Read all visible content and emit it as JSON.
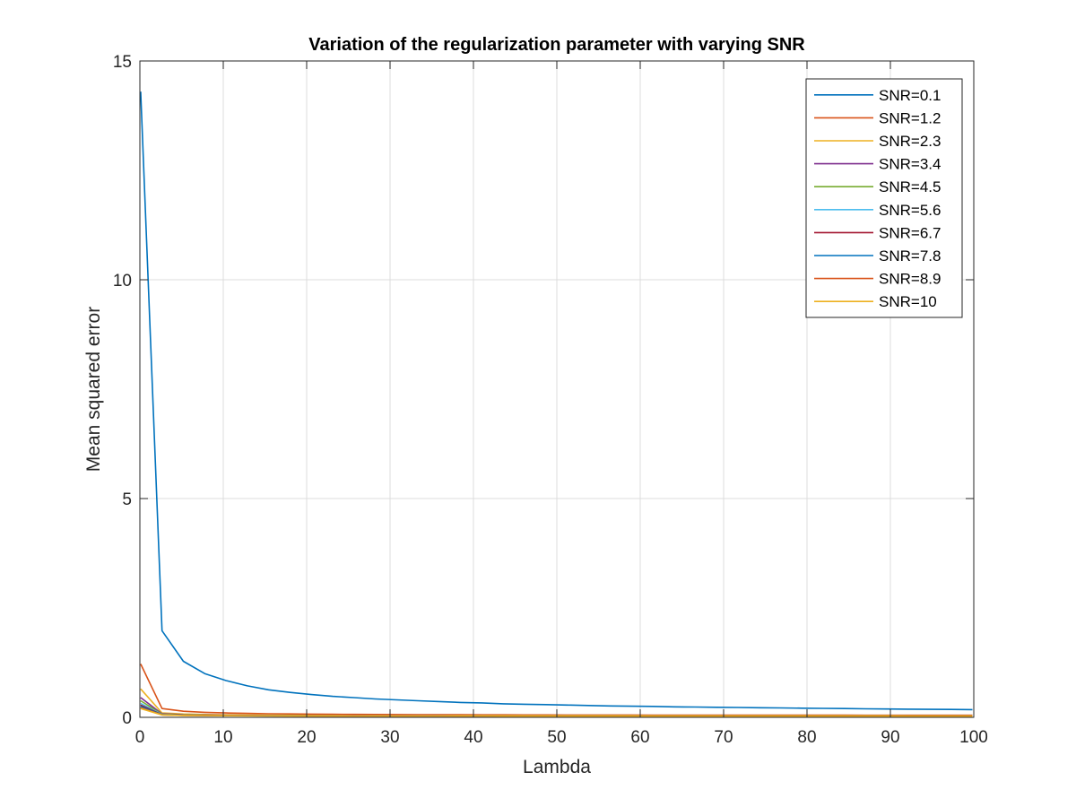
{
  "chart_data": {
    "type": "line",
    "title": "Variation of the regularization parameter with varying SNR",
    "xlabel": "Lambda",
    "ylabel": "Mean squared error",
    "xlim": [
      0,
      100
    ],
    "ylim": [
      0,
      15
    ],
    "xticks": [
      "0",
      "10",
      "20",
      "30",
      "40",
      "50",
      "60",
      "70",
      "80",
      "90",
      "100"
    ],
    "yticks": [
      "0",
      "5",
      "10",
      "15"
    ],
    "grid": true,
    "legend_position": "top-right",
    "x": [
      0.1,
      2.66,
      5.21,
      7.77,
      10.33,
      12.89,
      15.44,
      18,
      20.56,
      23.12,
      25.67,
      28.23,
      30.79,
      33.35,
      35.9,
      38.46,
      41.02,
      43.58,
      46.13,
      48.69,
      51.25,
      53.81,
      56.36,
      58.92,
      61.48,
      64.04,
      66.59,
      69.15,
      71.71,
      74.27,
      76.82,
      79.38,
      81.94,
      84.5,
      87.05,
      89.61,
      92.17,
      94.73,
      97.28,
      99.84
    ],
    "series": [
      {
        "name": "SNR=0.1",
        "color": "#0072BD",
        "values": [
          14.3,
          1.98,
          1.28,
          1.0,
          0.84,
          0.72,
          0.63,
          0.57,
          0.52,
          0.48,
          0.45,
          0.42,
          0.4,
          0.38,
          0.36,
          0.34,
          0.33,
          0.31,
          0.3,
          0.29,
          0.28,
          0.27,
          0.26,
          0.255,
          0.25,
          0.24,
          0.235,
          0.23,
          0.225,
          0.22,
          0.215,
          0.21,
          0.205,
          0.2,
          0.195,
          0.19,
          0.187,
          0.183,
          0.18,
          0.176
        ]
      },
      {
        "name": "SNR=1.2",
        "color": "#D95319",
        "values": [
          1.22,
          0.2,
          0.14,
          0.115,
          0.1,
          0.09,
          0.082,
          0.077,
          0.073,
          0.07,
          0.067,
          0.065,
          0.063,
          0.061,
          0.06,
          0.059,
          0.058,
          0.057,
          0.056,
          0.055,
          0.054,
          0.054,
          0.053,
          0.053,
          0.052,
          0.052,
          0.051,
          0.051,
          0.05,
          0.05,
          0.05,
          0.049,
          0.049,
          0.049,
          0.048,
          0.048,
          0.048,
          0.048,
          0.047,
          0.047
        ]
      },
      {
        "name": "SNR=2.3",
        "color": "#EDB120",
        "values": [
          0.65,
          0.1,
          0.075,
          0.065,
          0.058,
          0.053,
          0.05,
          0.048,
          0.046,
          0.045,
          0.044,
          0.043,
          0.042,
          0.041,
          0.041,
          0.04,
          0.04,
          0.039,
          0.039,
          0.039,
          0.038,
          0.038,
          0.038,
          0.038,
          0.037,
          0.037,
          0.037,
          0.037,
          0.037,
          0.036,
          0.036,
          0.036,
          0.036,
          0.036,
          0.036,
          0.036,
          0.035,
          0.035,
          0.035,
          0.035
        ]
      },
      {
        "name": "SNR=3.4",
        "color": "#7E2F8E",
        "values": [
          0.45,
          0.08,
          0.06,
          0.053,
          0.048,
          0.045,
          0.043,
          0.041,
          0.04,
          0.039,
          0.038,
          0.037,
          0.037,
          0.036,
          0.036,
          0.035,
          0.035,
          0.035,
          0.034,
          0.034,
          0.034,
          0.034,
          0.034,
          0.033,
          0.033,
          0.033,
          0.033,
          0.033,
          0.033,
          0.033,
          0.032,
          0.032,
          0.032,
          0.032,
          0.032,
          0.032,
          0.032,
          0.032,
          0.032,
          0.032
        ]
      },
      {
        "name": "SNR=4.5",
        "color": "#77AC30",
        "values": [
          0.38,
          0.07,
          0.055,
          0.048,
          0.044,
          0.041,
          0.039,
          0.038,
          0.037,
          0.036,
          0.035,
          0.035,
          0.034,
          0.034,
          0.033,
          0.033,
          0.033,
          0.033,
          0.032,
          0.032,
          0.032,
          0.032,
          0.032,
          0.032,
          0.031,
          0.031,
          0.031,
          0.031,
          0.031,
          0.031,
          0.031,
          0.031,
          0.031,
          0.031,
          0.031,
          0.03,
          0.03,
          0.03,
          0.03,
          0.03
        ]
      },
      {
        "name": "SNR=5.6",
        "color": "#4DBEEE",
        "values": [
          0.32,
          0.065,
          0.05,
          0.045,
          0.041,
          0.039,
          0.037,
          0.036,
          0.035,
          0.034,
          0.034,
          0.033,
          0.033,
          0.032,
          0.032,
          0.032,
          0.032,
          0.031,
          0.031,
          0.031,
          0.031,
          0.031,
          0.031,
          0.03,
          0.03,
          0.03,
          0.03,
          0.03,
          0.03,
          0.03,
          0.03,
          0.03,
          0.03,
          0.03,
          0.03,
          0.03,
          0.03,
          0.029,
          0.029,
          0.029
        ]
      },
      {
        "name": "SNR=6.7",
        "color": "#A2142F",
        "values": [
          0.28,
          0.06,
          0.048,
          0.043,
          0.04,
          0.038,
          0.036,
          0.035,
          0.034,
          0.033,
          0.033,
          0.032,
          0.032,
          0.032,
          0.031,
          0.031,
          0.031,
          0.031,
          0.031,
          0.03,
          0.03,
          0.03,
          0.03,
          0.03,
          0.03,
          0.03,
          0.03,
          0.03,
          0.029,
          0.029,
          0.029,
          0.029,
          0.029,
          0.029,
          0.029,
          0.029,
          0.029,
          0.029,
          0.029,
          0.029
        ]
      },
      {
        "name": "SNR=7.8",
        "color": "#0072BD",
        "values": [
          0.25,
          0.058,
          0.046,
          0.042,
          0.039,
          0.037,
          0.035,
          0.034,
          0.033,
          0.033,
          0.032,
          0.032,
          0.031,
          0.031,
          0.031,
          0.031,
          0.03,
          0.03,
          0.03,
          0.03,
          0.03,
          0.03,
          0.03,
          0.029,
          0.029,
          0.029,
          0.029,
          0.029,
          0.029,
          0.029,
          0.029,
          0.029,
          0.029,
          0.029,
          0.029,
          0.029,
          0.029,
          0.028,
          0.028,
          0.028
        ]
      },
      {
        "name": "SNR=8.9",
        "color": "#D95319",
        "values": [
          0.22,
          0.056,
          0.045,
          0.041,
          0.038,
          0.036,
          0.035,
          0.034,
          0.033,
          0.032,
          0.032,
          0.031,
          0.031,
          0.031,
          0.03,
          0.03,
          0.03,
          0.03,
          0.03,
          0.03,
          0.029,
          0.029,
          0.029,
          0.029,
          0.029,
          0.029,
          0.029,
          0.029,
          0.029,
          0.029,
          0.029,
          0.028,
          0.028,
          0.028,
          0.028,
          0.028,
          0.028,
          0.028,
          0.028,
          0.028
        ]
      },
      {
        "name": "SNR=10",
        "color": "#EDB120",
        "values": [
          0.2,
          0.055,
          0.044,
          0.04,
          0.037,
          0.035,
          0.034,
          0.033,
          0.032,
          0.032,
          0.031,
          0.031,
          0.03,
          0.03,
          0.03,
          0.03,
          0.03,
          0.029,
          0.029,
          0.029,
          0.029,
          0.029,
          0.029,
          0.029,
          0.029,
          0.028,
          0.028,
          0.028,
          0.028,
          0.028,
          0.028,
          0.028,
          0.028,
          0.028,
          0.028,
          0.028,
          0.028,
          0.028,
          0.028,
          0.028
        ]
      }
    ]
  }
}
